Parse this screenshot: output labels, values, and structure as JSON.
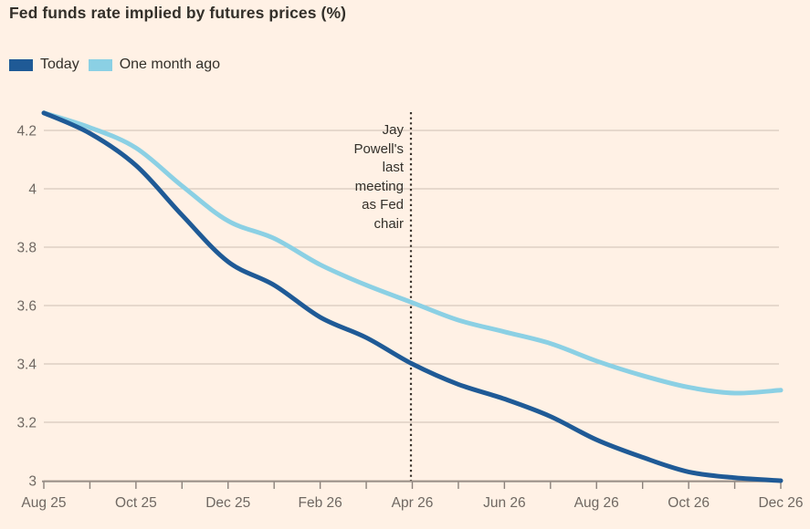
{
  "title": "Fed funds rate implied by futures prices (%)",
  "legend": {
    "items": [
      {
        "label": "Today",
        "color": "#1f5a96"
      },
      {
        "label": "One month ago",
        "color": "#8bd0e4"
      }
    ]
  },
  "annotation": {
    "text": "Jay Powell's last meeting as Fed chair",
    "lines": [
      "Jay",
      "Powell's",
      "last",
      "meeting",
      "as Fed",
      "chair"
    ]
  },
  "colors": {
    "background": "#fff1e5",
    "gridline": "#d8cabd",
    "axis": "#9b9189",
    "tick": "#8a817a",
    "text_primary": "#33302a",
    "text_secondary": "#6f6862",
    "vline": "#3a332c",
    "today_line": "#1f5a96",
    "month_ago_line": "#8bd0e4"
  },
  "chart_data": {
    "type": "line",
    "title": "Fed funds rate implied by futures prices (%)",
    "xlabel": "",
    "ylabel": "Fed funds rate implied by futures prices (%)",
    "x": [
      "Aug 25",
      "Sep 25",
      "Oct 25",
      "Nov 25",
      "Dec 25",
      "Jan 26",
      "Feb 26",
      "Mar 26",
      "Apr 26",
      "May 26",
      "Jun 26",
      "Jul 26",
      "Aug 26",
      "Sep 26",
      "Oct 26",
      "Nov 26",
      "Dec 26"
    ],
    "series": [
      {
        "name": "Today",
        "color": "#1f5a96",
        "values": [
          4.26,
          4.19,
          4.08,
          3.91,
          3.75,
          3.67,
          3.56,
          3.49,
          3.4,
          3.33,
          3.28,
          3.22,
          3.14,
          3.08,
          3.03,
          3.01,
          3.0
        ]
      },
      {
        "name": "One month ago",
        "color": "#8bd0e4",
        "values": [
          4.26,
          4.21,
          4.14,
          4.01,
          3.89,
          3.83,
          3.74,
          3.67,
          3.61,
          3.55,
          3.51,
          3.47,
          3.41,
          3.36,
          3.32,
          3.3,
          3.31
        ]
      }
    ],
    "yticks": [
      3,
      3.2,
      3.4,
      3.6,
      3.8,
      4,
      4.2
    ],
    "ytick_labels": [
      "3",
      "3.2",
      "3.4",
      "3.6",
      "3.8",
      "4",
      "4.2"
    ],
    "xtick_label_indices": [
      0,
      2,
      4,
      6,
      8,
      10,
      12,
      14,
      16
    ],
    "xtick_labels": [
      "Aug 25",
      "Oct 25",
      "Dec 25",
      "Feb 26",
      "Apr 26",
      "Jun 26",
      "Aug 26",
      "Oct 26",
      "Dec 26"
    ],
    "ylim": [
      3,
      4.3
    ],
    "grid": "horizontal",
    "legend_position": "top-left",
    "vline": {
      "at": "Apr 26",
      "style": "dotted",
      "label": "Jay Powell's last meeting as Fed chair"
    }
  }
}
